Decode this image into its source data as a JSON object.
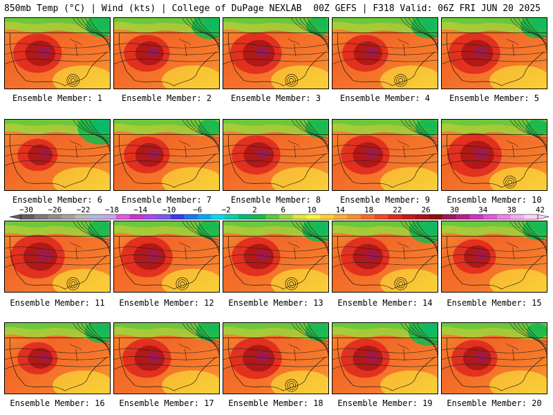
{
  "header": {
    "left": "850mb Temp (°C) | Wind (kts) | College of DuPage NEXLAB",
    "right": "00Z GEFS | F318 Valid: 06Z FRI JUN 20 2025"
  },
  "map": {
    "field": "850mb Temp (°C)",
    "ensemble_members": [
      {
        "label": "Ensemble Member: 1",
        "hot": 0.85,
        "cold_ne": 0.45,
        "low": true
      },
      {
        "label": "Ensemble Member: 2",
        "hot": 0.8,
        "cold_ne": 0.6,
        "low": false
      },
      {
        "label": "Ensemble Member: 3",
        "hot": 0.9,
        "cold_ne": 0.35,
        "low": true
      },
      {
        "label": "Ensemble Member: 4",
        "hot": 0.8,
        "cold_ne": 0.55,
        "low": true
      },
      {
        "label": "Ensemble Member: 5",
        "hot": 0.9,
        "cold_ne": 0.55,
        "low": false
      },
      {
        "label": "Ensemble Member: 6",
        "hot": 0.7,
        "cold_ne": 0.85,
        "low": false
      },
      {
        "label": "Ensemble Member: 7",
        "hot": 0.8,
        "cold_ne": 0.3,
        "low": false
      },
      {
        "label": "Ensemble Member: 8",
        "hot": 0.85,
        "cold_ne": 0.4,
        "low": false
      },
      {
        "label": "Ensemble Member: 9",
        "hot": 0.85,
        "cold_ne": 0.35,
        "low": false
      },
      {
        "label": "Ensemble Member: 10",
        "hot": 0.95,
        "cold_ne": 0.3,
        "low": true
      },
      {
        "label": "Ensemble Member: 11",
        "hot": 0.95,
        "cold_ne": 0.35,
        "low": true
      },
      {
        "label": "Ensemble Member: 12",
        "hot": 0.9,
        "cold_ne": 0.35,
        "low": true
      },
      {
        "label": "Ensemble Member: 13",
        "hot": 0.85,
        "cold_ne": 0.55,
        "low": true
      },
      {
        "label": "Ensemble Member: 14",
        "hot": 0.85,
        "cold_ne": 0.65,
        "low": true
      },
      {
        "label": "Ensemble Member: 15",
        "hot": 0.75,
        "cold_ne": 0.45,
        "low": false
      },
      {
        "label": "Ensemble Member: 16",
        "hot": 0.7,
        "cold_ne": 0.5,
        "low": false
      },
      {
        "label": "Ensemble Member: 17",
        "hot": 0.85,
        "cold_ne": 0.4,
        "low": false
      },
      {
        "label": "Ensemble Member: 18",
        "hot": 0.9,
        "cold_ne": 0.4,
        "low": true
      },
      {
        "label": "Ensemble Member: 19",
        "hot": 0.85,
        "cold_ne": 0.7,
        "low": false
      },
      {
        "label": "Ensemble Member: 20",
        "hot": 0.8,
        "cold_ne": 0.25,
        "low": false
      }
    ]
  },
  "colorbar": {
    "labels": [
      "-30",
      "-26",
      "-22",
      "-18",
      "-14",
      "-10",
      "-6",
      "-2",
      "2",
      "6",
      "10",
      "14",
      "18",
      "22",
      "26",
      "30",
      "34",
      "38",
      "42"
    ],
    "colors": [
      "#606060",
      "#7a7a7a",
      "#8e8e8e",
      "#a2a2a2",
      "#b9b9b9",
      "#aeb9dc",
      "#c8a6e6",
      "#dd5cdd",
      "#cc33cc",
      "#a84aec",
      "#7a5af0",
      "#3a3af5",
      "#1f75f0",
      "#00a8f5",
      "#00d8f0",
      "#00d2a8",
      "#00b878",
      "#1ab84a",
      "#5cc83c",
      "#9ad83c",
      "#d8ea3c",
      "#faf53c",
      "#fcd235",
      "#fab035",
      "#f79030",
      "#f56a28",
      "#ee4a22",
      "#e02a1e",
      "#c41a1c",
      "#a81416",
      "#8c1010",
      "#9c1a56",
      "#b8208a",
      "#cf36b8",
      "#e05ad6",
      "#ec84e6",
      "#f4aef0",
      "#fad4f8"
    ]
  }
}
